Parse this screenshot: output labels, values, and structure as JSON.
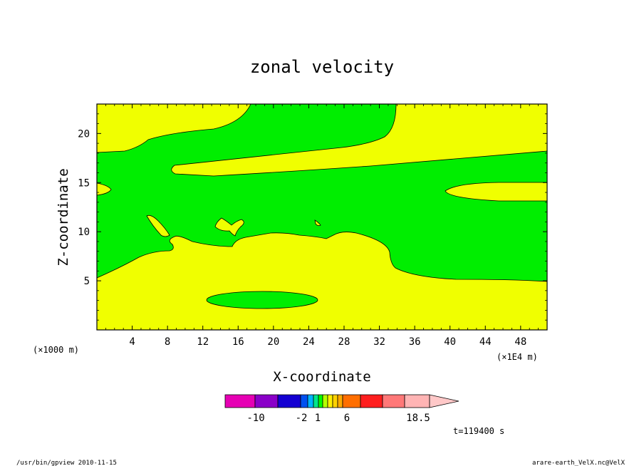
{
  "chart_data": {
    "type": "heatmap",
    "title": "zonal velocity",
    "xlabel": "X-coordinate",
    "ylabel": "Z-coordinate",
    "x_unit_left": "(×1000 m)",
    "x_unit_right": "(×1E4 m)",
    "xlim": [
      0,
      51
    ],
    "ylim": [
      0,
      23
    ],
    "x_ticks": [
      4,
      8,
      12,
      16,
      20,
      24,
      28,
      32,
      36,
      40,
      44,
      48
    ],
    "x_tick_labels": [
      "4",
      "8",
      "12",
      "16",
      "20",
      "24",
      "28",
      "32",
      "36",
      "40",
      "44",
      "48"
    ],
    "y_ticks": [
      5,
      10,
      15,
      20
    ],
    "y_tick_labels": [
      "5",
      "10",
      "15",
      "20"
    ],
    "regions": [
      {
        "name": "lower yellow layer",
        "color": "#f0ff00"
      },
      {
        "name": "middle green band",
        "color": "#00ee00"
      },
      {
        "name": "upper-left yellow",
        "color": "#f0ff00"
      },
      {
        "name": "upper-right yellow",
        "color": "#f0ff00"
      }
    ],
    "colorbar": {
      "colors": [
        "#e600b4",
        "#8a00c8",
        "#1400d2",
        "#0050f0",
        "#00b4ff",
        "#00e68c",
        "#00ff00",
        "#b4ff00",
        "#fff000",
        "#ffd200",
        "#ffaa00",
        "#ff6e00",
        "#ff1e1e",
        "#ff7878",
        "#ffb4b4",
        "#ffc8c8"
      ],
      "labels": [
        "-10",
        "-2",
        "1",
        "6",
        "18.5"
      ]
    },
    "time_label": "t=119400 s"
  },
  "footer": {
    "left": "/usr/bin/gpview  2010-11-15",
    "right": "arare-earth_VelX.nc@VelX"
  }
}
